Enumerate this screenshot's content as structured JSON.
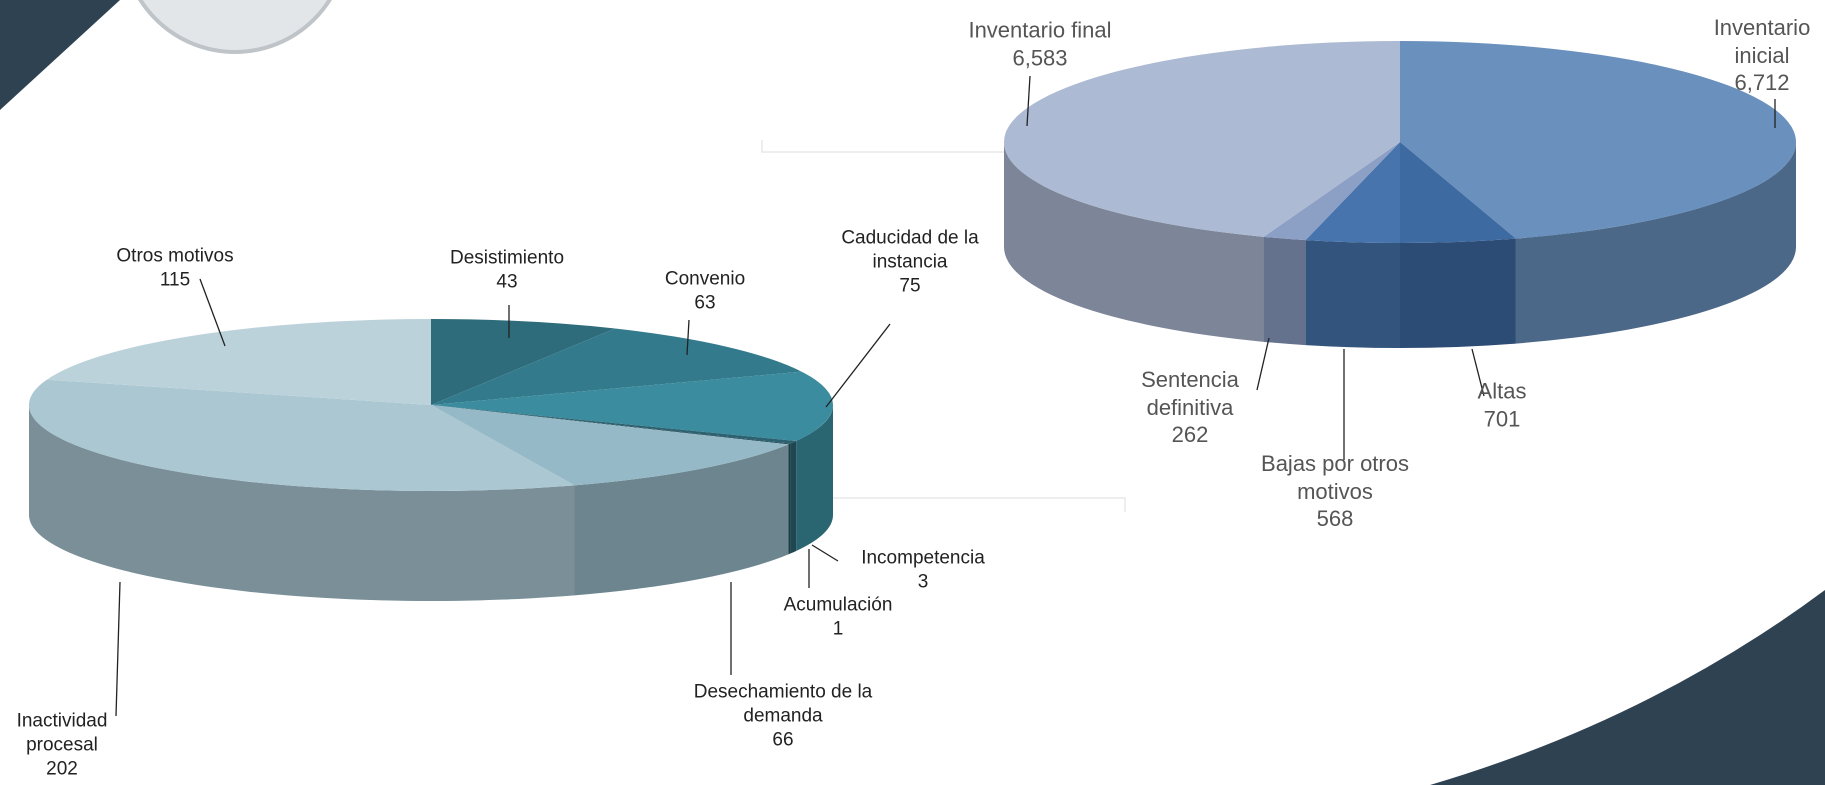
{
  "chart_data": [
    {
      "type": "pie",
      "categories": [
        "Desistimiento",
        "Convenio",
        "Caducidad de la instancia",
        "Incompetencia",
        "Acumulación",
        "Desechamiento de la demanda",
        "Inactividad procesal",
        "Otros motivos"
      ],
      "values": [
        43,
        63,
        75,
        3,
        1,
        66,
        202,
        115
      ],
      "colors": [
        "#2e6b7b",
        "#337b8c",
        "#3b8c9e",
        "#2b6170",
        "#23505c",
        "#96b9c7",
        "#aac7d2",
        "#bcd2da"
      ]
    },
    {
      "type": "pie",
      "categories": [
        "Inventario inicial",
        "Altas",
        "Bajas por otros motivos",
        "Sentencia definitiva",
        "Inventario final"
      ],
      "values": [
        6712,
        701,
        568,
        262,
        6583
      ],
      "value_labels": [
        "6,712",
        "701",
        "568",
        "262",
        "6,583"
      ],
      "colors": [
        "#6a90bd",
        "#3e6aa2",
        "#4774ad",
        "#8c9fc5",
        "#adbad3"
      ]
    }
  ]
}
